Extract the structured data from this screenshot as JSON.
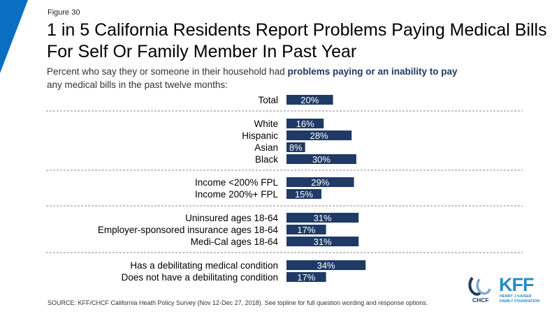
{
  "header": {
    "figure_label": "Figure 30",
    "title_line1": "1 in 5 California Residents Report Problems Paying Medical Bills",
    "title_line2": "For Self Or Family Member In Past Year",
    "subtitle_part1": "Percent who say they or someone in their household had ",
    "subtitle_bold": "problems paying or an inability to pay",
    "subtitle_part2": "any medical bills in the past twelve months:"
  },
  "footer": {
    "source": "SOURCE: KFF/CHCF California Heath Policy Survey (Nov 12-Dec 27, 2018). See topline for full question wording and response options.",
    "chcf_logo_text": "CHCF",
    "kff_logo_text": "KFF",
    "kff_logo_sub_line1": "HENRY J KAISER",
    "kff_logo_sub_line2": "FAMILY FOUNDATION"
  },
  "colors": {
    "bar": "#1f3a64",
    "corner_accent": "#0a6fc2",
    "divider": "#888888"
  },
  "chart_data": {
    "type": "bar",
    "orientation": "horizontal",
    "categories": [
      "Total",
      "White",
      "Hispanic",
      "Asian",
      "Black",
      "Income <200% FPL",
      "Income 200%+ FPL",
      "Uninsured ages 18-64",
      "Employer-sponsored insurance ages 18-64",
      "Medi-Cal ages 18-64",
      "Has a debilitating medical condition",
      "Does not have a debilitating condition"
    ],
    "values": [
      20,
      16,
      28,
      8,
      30,
      29,
      15,
      31,
      17,
      31,
      34,
      17
    ],
    "value_labels": [
      "20%",
      "16%",
      "28%",
      "8%",
      "30%",
      "29%",
      "15%",
      "31%",
      "17%",
      "31%",
      "34%",
      "17%"
    ],
    "groups": [
      [
        0
      ],
      [
        1,
        2,
        3,
        4
      ],
      [
        5,
        6
      ],
      [
        7,
        8,
        9
      ],
      [
        10,
        11
      ]
    ],
    "unit": "%",
    "title": "",
    "xlabel": "",
    "ylabel": "",
    "grid": false
  }
}
